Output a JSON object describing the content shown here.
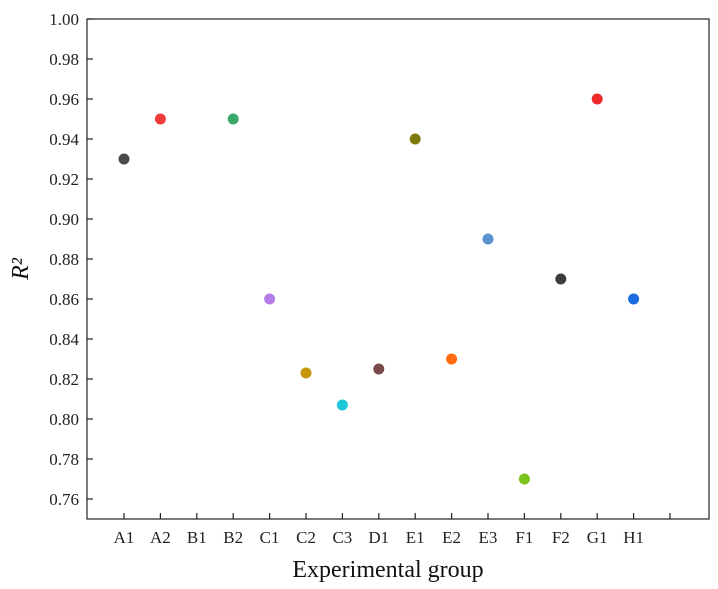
{
  "chart_data": {
    "type": "scatter",
    "xlabel": "Experimental group",
    "ylabel": "R²",
    "ylim": [
      0.75,
      1.0
    ],
    "yticks": [
      0.76,
      0.78,
      0.8,
      0.82,
      0.84,
      0.86,
      0.88,
      0.9,
      0.92,
      0.94,
      0.96,
      0.98,
      1.0
    ],
    "ytick_labels": [
      "0.76",
      "0.78",
      "0.80",
      "0.82",
      "0.84",
      "0.86",
      "0.88",
      "0.90",
      "0.92",
      "0.94",
      "0.96",
      "0.98",
      "1.00"
    ],
    "categories": [
      "A1",
      "A2",
      "B1",
      "B2",
      "C1",
      "C2",
      "C3",
      "D1",
      "E1",
      "E2",
      "E3",
      "F1",
      "F2",
      "G1",
      "H1"
    ],
    "grid": false,
    "points": [
      {
        "category": "A1",
        "value": 0.93,
        "color": "#4a4a4a"
      },
      {
        "category": "A2",
        "value": 0.95,
        "color": "#ee3b3b"
      },
      {
        "category": "B2",
        "value": 0.95,
        "color": "#3aa86a"
      },
      {
        "category": "C1",
        "value": 0.86,
        "color": "#b57ee6"
      },
      {
        "category": "C2",
        "value": 0.823,
        "color": "#c8960a"
      },
      {
        "category": "C3",
        "value": 0.807,
        "color": "#1ec8d8"
      },
      {
        "category": "D1",
        "value": 0.825,
        "color": "#7a4a4a"
      },
      {
        "category": "E1",
        "value": 0.94,
        "color": "#7d7a0a"
      },
      {
        "category": "E2",
        "value": 0.83,
        "color": "#ff6a10"
      },
      {
        "category": "E3",
        "value": 0.89,
        "color": "#5b93d0"
      },
      {
        "category": "F1",
        "value": 0.77,
        "color": "#7cc21c"
      },
      {
        "category": "F2",
        "value": 0.87,
        "color": "#3c3c3c"
      },
      {
        "category": "G1",
        "value": 0.96,
        "color": "#ee2b2b"
      },
      {
        "category": "H1",
        "value": 0.86,
        "color": "#1a6ae0"
      }
    ]
  }
}
